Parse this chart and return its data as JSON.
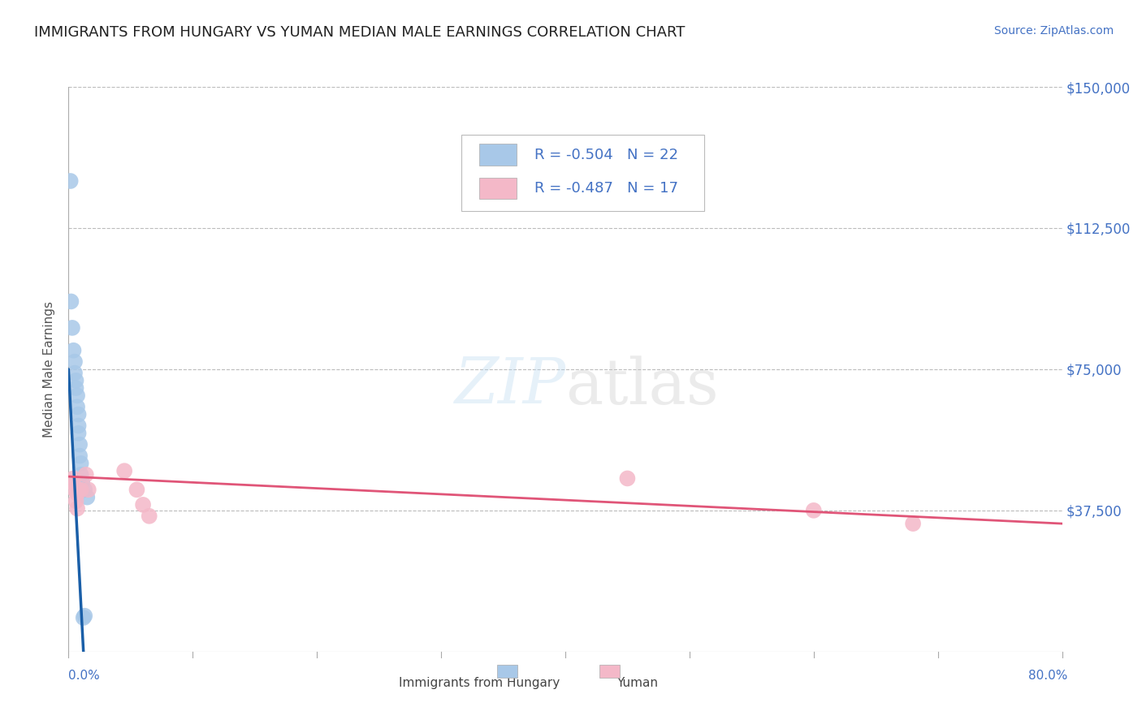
{
  "title": "IMMIGRANTS FROM HUNGARY VS YUMAN MEDIAN MALE EARNINGS CORRELATION CHART",
  "source": "Source: ZipAtlas.com",
  "ylabel": "Median Male Earnings",
  "yticks": [
    0,
    37500,
    75000,
    112500,
    150000
  ],
  "ytick_labels": [
    "",
    "$37,500",
    "$75,000",
    "$112,500",
    "$150,000"
  ],
  "xlim": [
    0,
    0.8
  ],
  "ylim": [
    0,
    150000
  ],
  "legend_r1": "R = -0.504",
  "legend_n1": "N = 22",
  "legend_r2": "R = -0.487",
  "legend_n2": "N = 17",
  "blue_color": "#a8c8e8",
  "pink_color": "#f4b8c8",
  "blue_line_color": "#1a5fa8",
  "pink_line_color": "#e05578",
  "title_color": "#222222",
  "axis_label_color": "#4472c4",
  "grid_color": "#bbbbbb",
  "background_color": "#ffffff",
  "blue_x": [
    0.0015,
    0.002,
    0.003,
    0.004,
    0.005,
    0.005,
    0.006,
    0.006,
    0.007,
    0.007,
    0.008,
    0.008,
    0.008,
    0.009,
    0.009,
    0.01,
    0.01,
    0.011,
    0.012,
    0.013,
    0.013,
    0.015
  ],
  "blue_y": [
    125000,
    93000,
    86000,
    80000,
    77000,
    74000,
    72000,
    70000,
    68000,
    65000,
    63000,
    60000,
    58000,
    55000,
    52000,
    50000,
    47000,
    45000,
    9000,
    9500,
    43000,
    41000
  ],
  "pink_x": [
    0.003,
    0.004,
    0.005,
    0.006,
    0.007,
    0.007,
    0.008,
    0.01,
    0.014,
    0.016,
    0.045,
    0.055,
    0.06,
    0.065,
    0.45,
    0.6,
    0.68
  ],
  "pink_y": [
    45000,
    46000,
    43000,
    40000,
    42000,
    38000,
    43000,
    43000,
    47000,
    43000,
    48000,
    43000,
    39000,
    36000,
    46000,
    37500,
    34000
  ]
}
